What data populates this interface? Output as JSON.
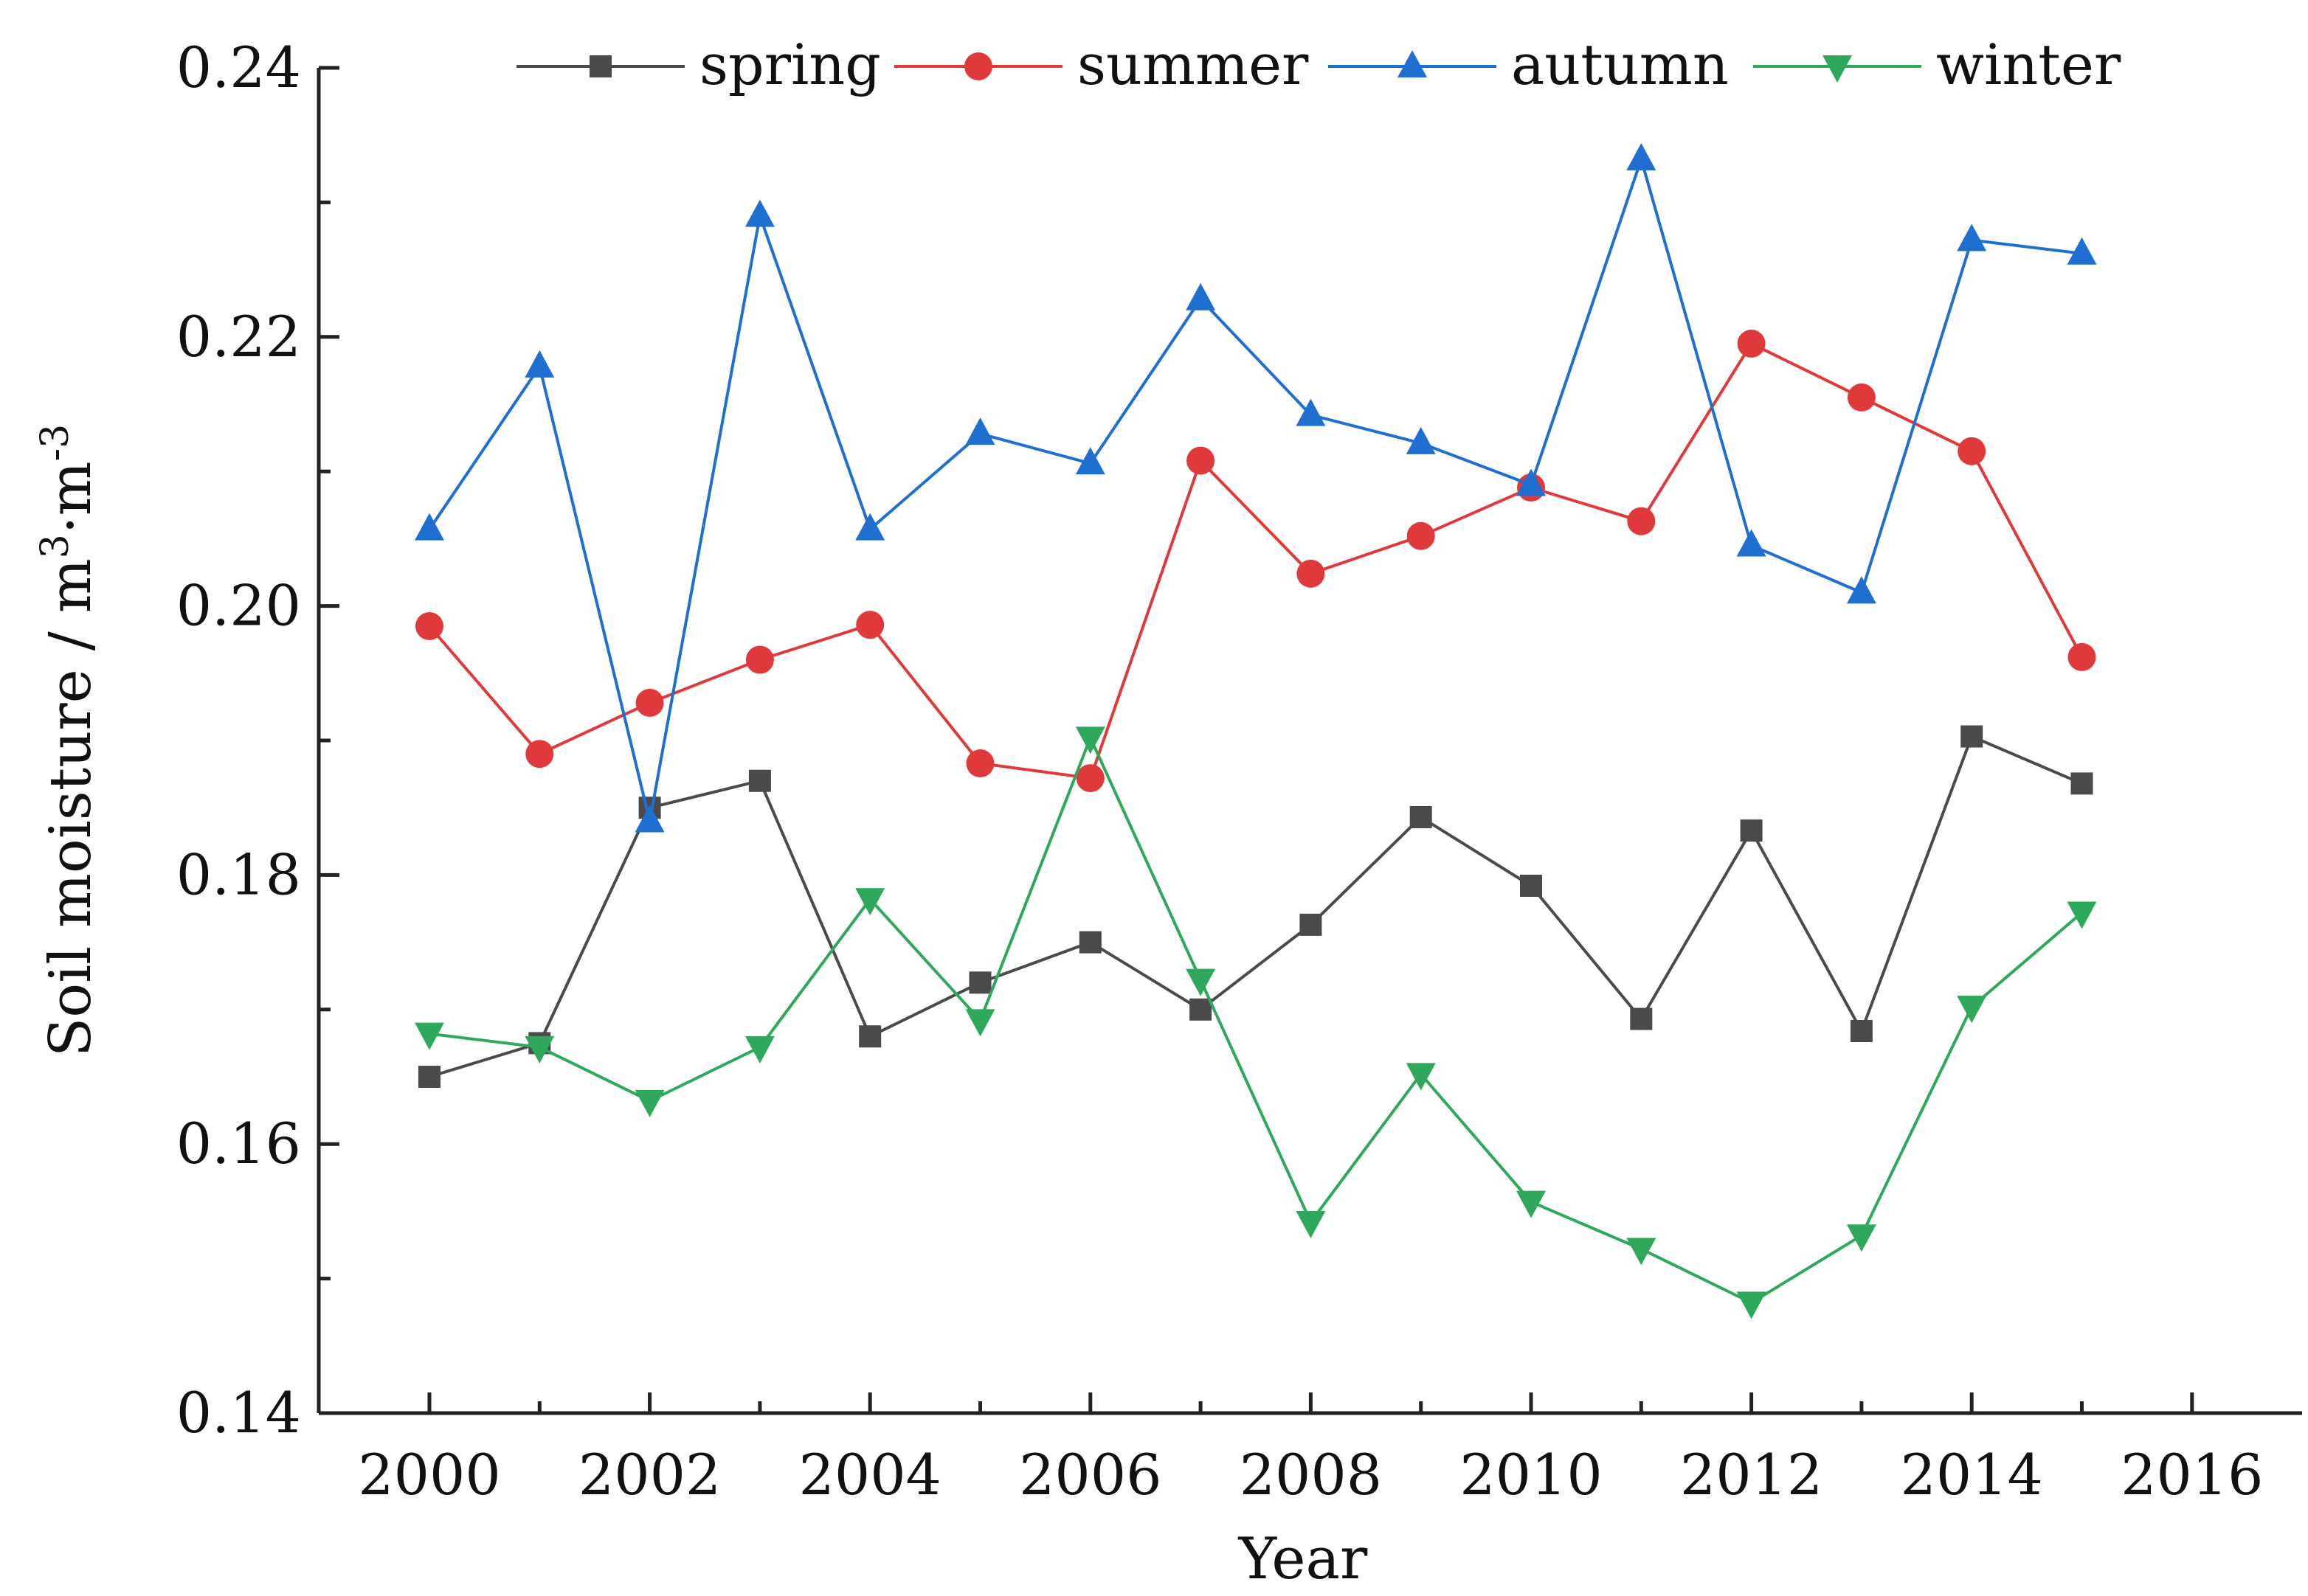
{
  "chart_data": {
    "type": "line",
    "title": "",
    "xlabel": "Year",
    "ylabel": {
      "main": "Soil moisture / m",
      "sup1": "3",
      "mid": "·m",
      "sup2": "-3"
    },
    "xlim": [
      1999,
      2017
    ],
    "ylim": [
      0.14,
      0.24
    ],
    "xticks": [
      2000,
      2002,
      2004,
      2006,
      2008,
      2010,
      2012,
      2014,
      2016
    ],
    "yticks": [
      0.14,
      0.16,
      0.18,
      0.2,
      0.22,
      0.24
    ],
    "ytick_labels": [
      "0.14",
      "0.16",
      "0.18",
      "0.20",
      "0.22",
      "0.24"
    ],
    "legend_position": "top",
    "x": [
      2000,
      2001,
      2002,
      2003,
      2004,
      2005,
      2006,
      2007,
      2008,
      2009,
      2010,
      2011,
      2012,
      2013,
      2014,
      2015
    ],
    "series": [
      {
        "name": "spring",
        "color": "#4a4a4a",
        "marker": "square",
        "values": [
          0.165,
          0.1675,
          0.185,
          0.187,
          0.168,
          0.172,
          0.175,
          0.17,
          0.1763,
          0.1843,
          0.1792,
          0.1693,
          0.1833,
          0.1684,
          0.1903,
          0.1868
        ]
      },
      {
        "name": "summer",
        "color": "#e0393b",
        "marker": "circle",
        "values": [
          0.1985,
          0.189,
          0.1928,
          0.196,
          0.1986,
          0.1883,
          0.1872,
          0.2108,
          0.2024,
          0.2052,
          0.2088,
          0.2063,
          0.2195,
          0.2155,
          0.2115,
          0.1962
        ]
      },
      {
        "name": "autumn",
        "color": "#1f6fd1",
        "marker": "triangle-up",
        "values": [
          0.2057,
          0.2178,
          0.184,
          0.229,
          0.2057,
          0.2128,
          0.2106,
          0.2228,
          0.2142,
          0.2121,
          0.209,
          0.2332,
          0.2045,
          0.201,
          0.2272,
          0.2262
        ]
      },
      {
        "name": "winter",
        "color": "#2ea85a",
        "marker": "triangle-down",
        "values": [
          0.1682,
          0.1672,
          0.1632,
          0.1672,
          0.1782,
          0.1692,
          0.1902,
          0.1722,
          0.1542,
          0.1652,
          0.1557,
          0.1522,
          0.1482,
          0.1532,
          0.1702,
          0.1772
        ]
      }
    ]
  }
}
